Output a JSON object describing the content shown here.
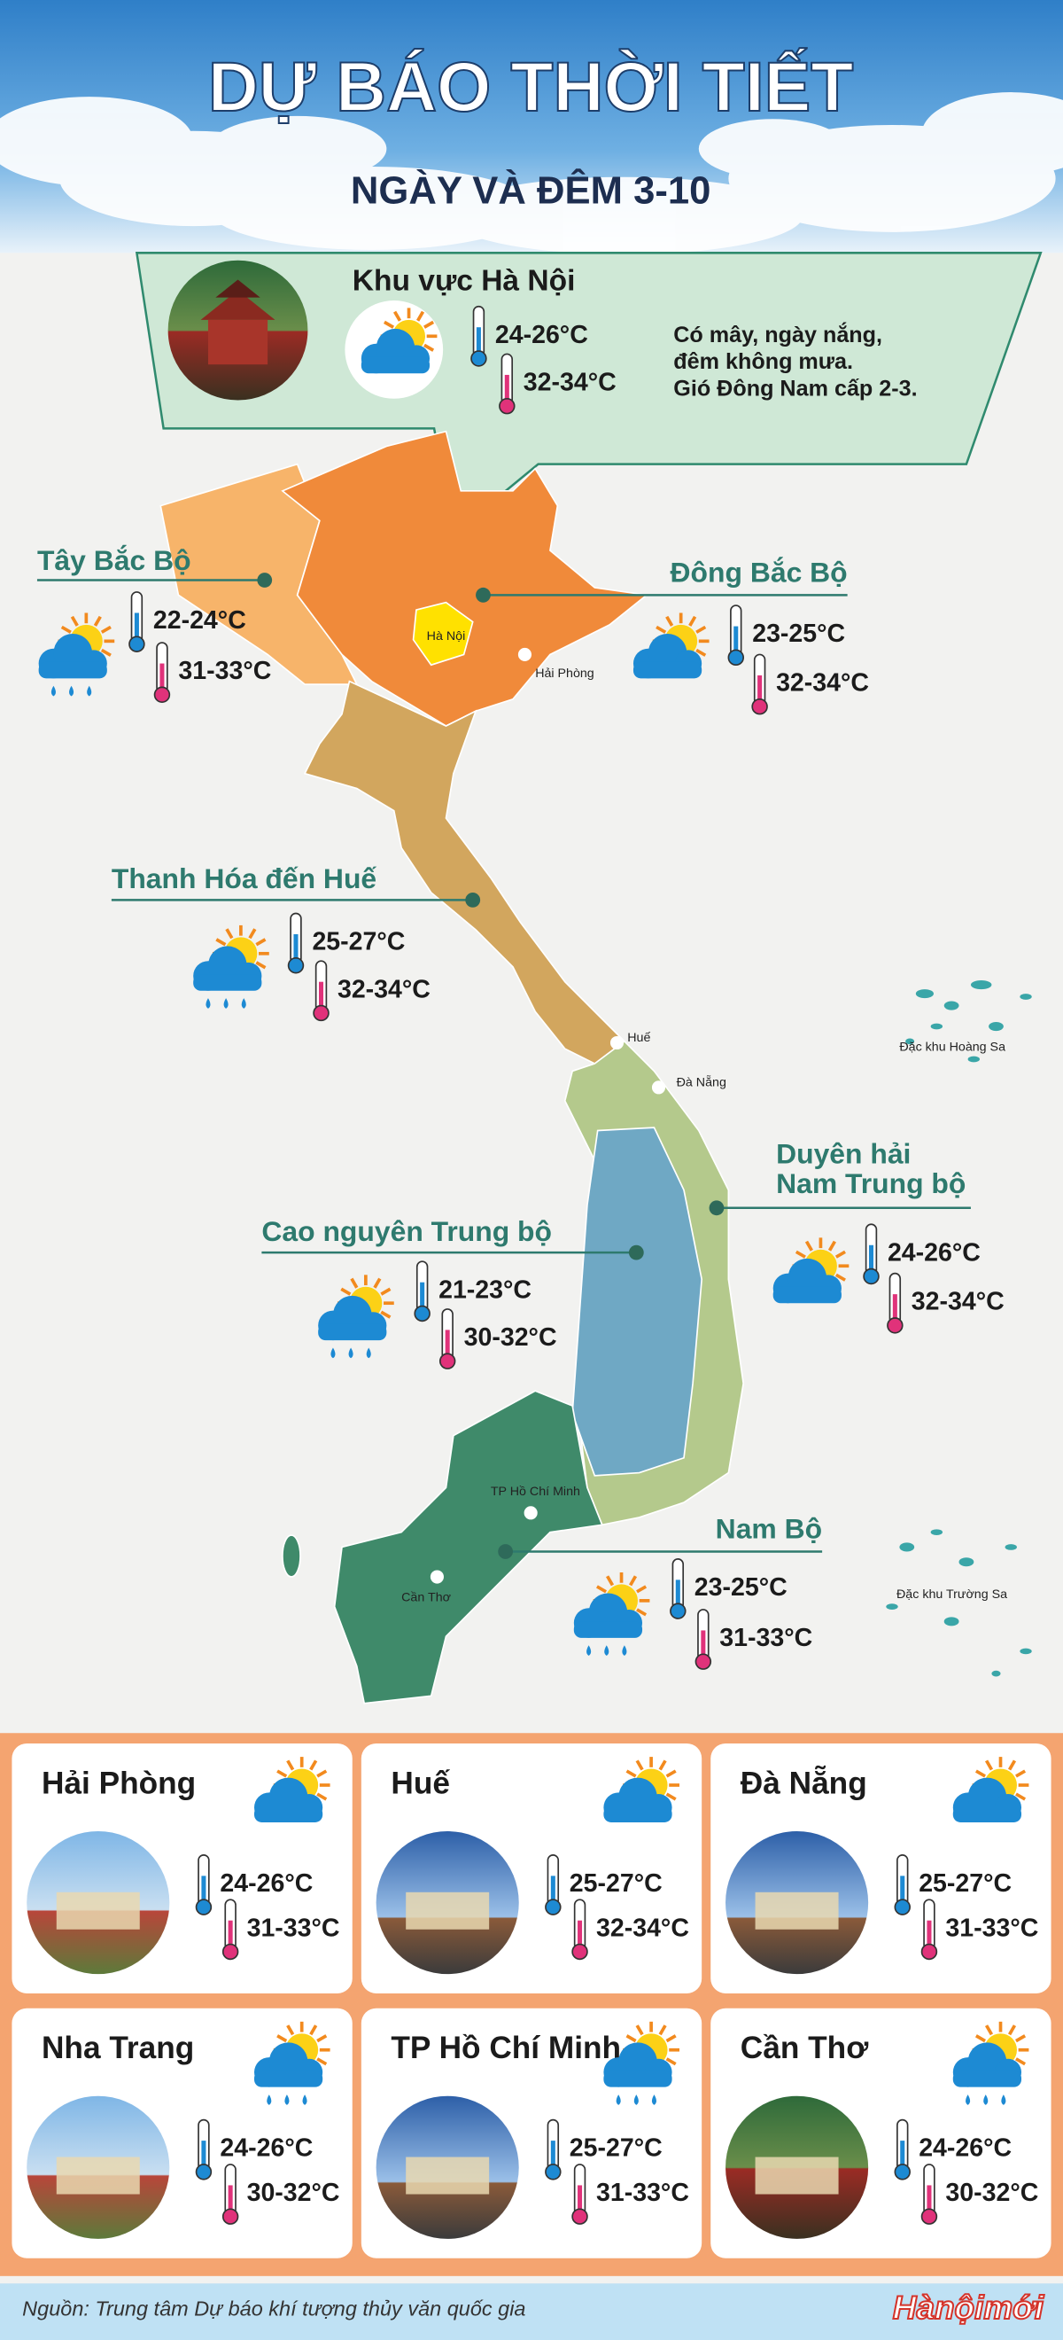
{
  "header": {
    "title": "DỰ BÁO THỜI TIẾT",
    "subtitle": "NGÀY VÀ ĐÊM 3-10"
  },
  "hanoi": {
    "name": "Khu vực Hà Nội",
    "low": "24-26°C",
    "high": "32-34°C",
    "description": [
      "Có mây, ngày nắng,",
      "đêm không mưa.",
      "Gió Đông Nam cấp 2-3."
    ]
  },
  "regions": [
    {
      "name": [
        "Tây Bắc Bộ"
      ],
      "low": "22-24°C",
      "high": "31-33°C",
      "rain": true
    },
    {
      "name": [
        "Đông Bắc Bộ"
      ],
      "low": "23-25°C",
      "high": "32-34°C",
      "rain": false
    },
    {
      "name": [
        "Thanh Hóa đến Huế"
      ],
      "low": "25-27°C",
      "high": "32-34°C",
      "rain": true
    },
    {
      "name": [
        "Duyên hải",
        "Nam Trung bộ"
      ],
      "low": "24-26°C",
      "high": "32-34°C",
      "rain": false
    },
    {
      "name": [
        "Cao nguyên Trung bộ"
      ],
      "low": "21-23°C",
      "high": "30-32°C",
      "rain": true
    },
    {
      "name": [
        "Nam Bộ"
      ],
      "low": "23-25°C",
      "high": "31-33°C",
      "rain": true
    }
  ],
  "map_labels": [
    "Hà Nội",
    "Hải Phòng",
    "Huế",
    "Đà Nẵng",
    "TP Hồ Chí Minh",
    "Cần Thơ",
    "Đặc khu Hoàng Sa",
    "Đặc khu Trường Sa"
  ],
  "cities": [
    {
      "name": "Hải Phòng",
      "low": "24-26°C",
      "high": "31-33°C",
      "rain": false
    },
    {
      "name": "Huế",
      "low": "25-27°C",
      "high": "32-34°C",
      "rain": false
    },
    {
      "name": "Đà Nẵng",
      "low": "25-27°C",
      "high": "31-33°C",
      "rain": false
    },
    {
      "name": "Nha Trang",
      "low": "24-26°C",
      "high": "30-32°C",
      "rain": true
    },
    {
      "name": "TP Hồ Chí Minh",
      "low": "25-27°C",
      "high": "31-33°C",
      "rain": true
    },
    {
      "name": "Cần Thơ",
      "low": "24-26°C",
      "high": "30-32°C",
      "rain": true
    }
  ],
  "footer": {
    "source": "Nguồn: Trung tâm Dự báo khí tượng thủy văn quốc gia",
    "logo": "Hànộimới"
  }
}
